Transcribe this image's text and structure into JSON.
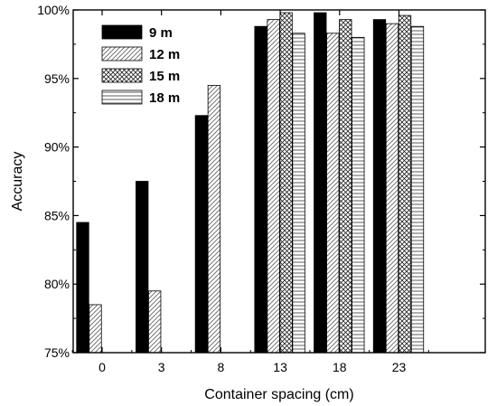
{
  "chart_data": {
    "type": "bar",
    "title": "",
    "xlabel": "Container spacing (cm)",
    "ylabel": "Accuracy",
    "categories": [
      "0",
      "3",
      "8",
      "13",
      "18",
      "23"
    ],
    "ylim": [
      75,
      100
    ],
    "yticks": [
      75,
      80,
      85,
      90,
      95,
      100
    ],
    "ytick_labels": [
      "75%",
      "80%",
      "85%",
      "90%",
      "95%",
      "100%"
    ],
    "grid": false,
    "legend_position": "top-left",
    "series": [
      {
        "name": "9 m",
        "pattern": "solid",
        "values": [
          84.5,
          87.5,
          92.3,
          98.8,
          99.8,
          99.3
        ]
      },
      {
        "name": "12 m",
        "pattern": "diagonal-hatch",
        "values": [
          78.5,
          79.5,
          94.5,
          99.3,
          98.3,
          99.0
        ]
      },
      {
        "name": "15 m",
        "pattern": "crosshatch",
        "values": [
          null,
          null,
          null,
          99.8,
          99.3,
          99.6
        ]
      },
      {
        "name": "18 m",
        "pattern": "horizontal-lines",
        "values": [
          null,
          null,
          null,
          98.3,
          98.0,
          98.8
        ]
      }
    ]
  }
}
